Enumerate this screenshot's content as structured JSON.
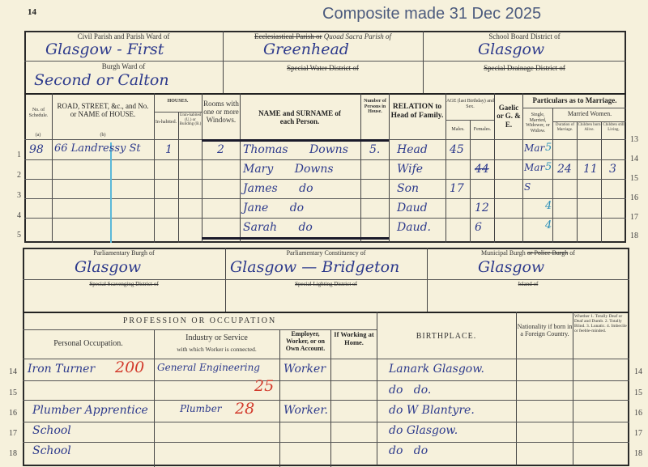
{
  "page_number": "14",
  "watermark": "Composite made 31 Dec 2025",
  "top": {
    "civil_parish_label": "Civil Parish and Parish Ward of",
    "civil_parish_value": "Glasgow - First",
    "quoad_sacra_label_struck": "Ecclesiastical Parish or",
    "quoad_sacra_label": "Quoad Sacra Parish of",
    "quoad_sacra_value": "Greenhead",
    "school_board_label": "School Board District of",
    "school_board_value": "Glasgow",
    "burgh_ward_label": "Burgh Ward of",
    "burgh_ward_value": "Second or Calton",
    "water_label": "Special Water District of",
    "drainage_label": "Special Drainage District of",
    "headers": {
      "schedule": "No. of Schedule.",
      "road": "ROAD, STREET, &c., and No. or NAME of HOUSE.",
      "houses": "HOUSES.",
      "inhabited": "In-habited.",
      "uninhabited": "Unin-habited (U.) or Building (B.)",
      "rooms": "Rooms with one or more Windows.",
      "name": "NAME and SURNAME of each Person.",
      "persons": "Number of Persons in House.",
      "relation": "RELATION to Head of Family.",
      "age": "AGE (last Birthday) and Sex.",
      "males": "Males.",
      "females": "Females.",
      "gaelic": "Gaelic or G. & E.",
      "marriage": "Particulars as to Marriage.",
      "single": "Single, Married, Widower, or Widow.",
      "married_women": "Married Women.",
      "duration": "Duration of Marriage.",
      "born": "Children born Alive.",
      "living": "Children still Living.",
      "col_a": "(a)",
      "col_b": "(b)"
    },
    "row_numbers": [
      "1",
      "2",
      "3",
      "4",
      "5"
    ],
    "right_numbers": [
      "13",
      "14",
      "15",
      "16",
      "17",
      "18"
    ],
    "rows": [
      {
        "schedule": "98",
        "road": "66 Landressy St",
        "inhabited": "1",
        "rooms": "2",
        "name": "Thomas Downs",
        "persons": "5.",
        "relation": "Head",
        "male": "45",
        "female": "",
        "status": "Mar",
        "duration": "",
        "born": "",
        "living": ""
      },
      {
        "schedule": "",
        "road": "",
        "inhabited": "",
        "rooms": "",
        "name": "Mary Downs",
        "persons": "",
        "relation": "Wife",
        "male": "",
        "female": "44",
        "status": "Mar",
        "duration": "24",
        "born": "11",
        "living": "3"
      },
      {
        "schedule": "",
        "road": "",
        "inhabited": "",
        "rooms": "",
        "name": "James do",
        "persons": "",
        "relation": "Son",
        "male": "17",
        "female": "",
        "status": "S",
        "duration": "",
        "born": "",
        "living": ""
      },
      {
        "schedule": "",
        "road": "",
        "inhabited": "",
        "rooms": "",
        "name": "Jane do",
        "persons": "",
        "relation": "Daud",
        "male": "",
        "female": "12",
        "status": "",
        "duration": "",
        "born": "",
        "living": ""
      },
      {
        "schedule": "",
        "road": "",
        "inhabited": "",
        "rooms": "",
        "name": "Sarah do",
        "persons": "",
        "relation": "Daud.",
        "male": "",
        "female": "6",
        "status": "",
        "duration": "",
        "born": "",
        "living": ""
      }
    ],
    "status_marks": [
      "5",
      "5",
      "",
      "4",
      "4"
    ]
  },
  "bottom": {
    "parl_burgh_label": "Parliamentary Burgh of",
    "parl_burgh_value": "Glasgow",
    "constituency_label": "Parliamentary Constituency of",
    "constituency_value": "Glasgow — Bridgeton",
    "municipal_label": "Municipal Burgh",
    "municipal_struck": "or Police Burgh",
    "municipal_of": "of",
    "municipal_value": "Glasgow",
    "scavenging_label": "Special Scavenging District of",
    "lighting_label": "Special Lighting District of",
    "island_label": "Island of",
    "headers": {
      "profession": "PROFESSION OR OCCUPATION",
      "personal": "Personal Occupation.",
      "industry": "Industry or Service",
      "industry_sub": "with which Worker is connected.",
      "employer": "Employer, Worker, or on Own Account.",
      "home": "If Working at Home.",
      "birthplace": "BIRTHPLACE.",
      "nationality": "Nationality if born in a Foreign Country.",
      "infirmity": "Whether 1. Totally Deaf or Deaf and Dumb. 2. Totally Blind. 3. Lunatic. 4. Imbecile or feeble-minded."
    },
    "row_numbers": [
      "14",
      "15",
      "16",
      "17",
      "18"
    ],
    "rows": [
      {
        "occupation": "Iron Turner",
        "occ_code": "200",
        "industry": "General Engineering",
        "ind_code": "25",
        "employer": "Worker",
        "birthplace": "Lanark Glasgow."
      },
      {
        "occupation": "",
        "occ_code": "",
        "industry": "",
        "ind_code": "",
        "employer": "",
        "birthplace": "do   do."
      },
      {
        "occupation": "Plumber Apprentice",
        "occ_code": "",
        "industry": "Plumber",
        "ind_code": "28",
        "employer": "Worker.",
        "birthplace": "do W Blantyre."
      },
      {
        "occupation": "School",
        "occ_code": "",
        "industry": "",
        "ind_code": "",
        "employer": "",
        "birthplace": "do Glasgow."
      },
      {
        "occupation": "School",
        "occ_code": "",
        "industry": "",
        "ind_code": "",
        "employer": "",
        "birthplace": "do   do"
      }
    ]
  },
  "colors": {
    "paper": "#f6f1dc",
    "ink": "#2d3a8c",
    "red_ink": "#d23a2c",
    "teal_ink": "#2b8fb8"
  }
}
